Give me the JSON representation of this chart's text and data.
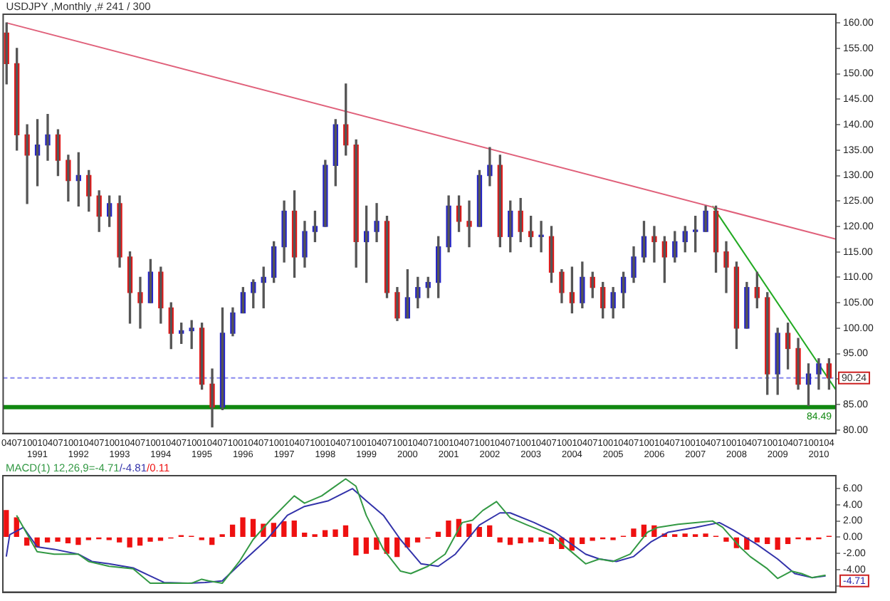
{
  "chart_data": [
    {
      "type": "candlestick",
      "title": "USDJPY ,Monthly ,# 241 / 300",
      "legend": false,
      "grid": false,
      "x": [
        "1990-04",
        "1990-07",
        "1990-10",
        "1991-01",
        "1991-04",
        "1991-07",
        "1991-10",
        "1992-01",
        "1992-04",
        "1992-07",
        "1992-10",
        "1993-01",
        "1993-04",
        "1993-07",
        "1993-10",
        "1994-01",
        "1994-04",
        "1994-07",
        "1994-10",
        "1995-01",
        "1995-04",
        "1995-07",
        "1995-10",
        "1996-01",
        "1996-04",
        "1996-07",
        "1996-10",
        "1997-01",
        "1997-04",
        "1997-07",
        "1997-10",
        "1998-01",
        "1998-04",
        "1998-07",
        "1998-10",
        "1999-01",
        "1999-04",
        "1999-07",
        "1999-10",
        "2000-01",
        "2000-04",
        "2000-07",
        "2000-10",
        "2001-01",
        "2001-04",
        "2001-07",
        "2001-10",
        "2002-01",
        "2002-04",
        "2002-07",
        "2002-10",
        "2003-01",
        "2003-04",
        "2003-07",
        "2003-10",
        "2004-01",
        "2004-04",
        "2004-07",
        "2004-10",
        "2005-01",
        "2005-04",
        "2005-07",
        "2005-10",
        "2006-01",
        "2006-04",
        "2006-07",
        "2006-10",
        "2007-01",
        "2007-04",
        "2007-07",
        "2007-10",
        "2008-01",
        "2008-04",
        "2008-07",
        "2008-10",
        "2009-01",
        "2009-04",
        "2009-07",
        "2009-10",
        "2010-01",
        "2010-04"
      ],
      "ohlc": [
        [
          158,
          160,
          148,
          152
        ],
        [
          152,
          155,
          135,
          138
        ],
        [
          138,
          140,
          124.5,
          134
        ],
        [
          134,
          141,
          128,
          136
        ],
        [
          136,
          142,
          133,
          138
        ],
        [
          138,
          139,
          130,
          133
        ],
        [
          133,
          134,
          125,
          129
        ],
        [
          129,
          134.5,
          124,
          130
        ],
        [
          130,
          131,
          123,
          126
        ],
        [
          126,
          127,
          119,
          122
        ],
        [
          122,
          126,
          120,
          124.5
        ],
        [
          124.5,
          126,
          112,
          114
        ],
        [
          114,
          115,
          101,
          107
        ],
        [
          107,
          110,
          100,
          105
        ],
        [
          105,
          113.5,
          105,
          111
        ],
        [
          111,
          112,
          101,
          104
        ],
        [
          104,
          105,
          96,
          99
        ],
        [
          99,
          101,
          97,
          99.5
        ],
        [
          99.5,
          101.5,
          96,
          100
        ],
        [
          100,
          101,
          88,
          89
        ],
        [
          89,
          92,
          80.6,
          84.5
        ],
        [
          84.5,
          104,
          84,
          99
        ],
        [
          99,
          104,
          98.5,
          103
        ],
        [
          103,
          108,
          103,
          107
        ],
        [
          107,
          109.5,
          104,
          109
        ],
        [
          109,
          112,
          104,
          110
        ],
        [
          110,
          117,
          109,
          116
        ],
        [
          116,
          125,
          113,
          123
        ],
        [
          123,
          127,
          110,
          114
        ],
        [
          114,
          121,
          112,
          119
        ],
        [
          119,
          123,
          117,
          120
        ],
        [
          120,
          133,
          120,
          132
        ],
        [
          132,
          141,
          128,
          140
        ],
        [
          140,
          148,
          134,
          136
        ],
        [
          136,
          137,
          112,
          117
        ],
        [
          117,
          124,
          109,
          119
        ],
        [
          119,
          124.5,
          117,
          121
        ],
        [
          121,
          122,
          106,
          107
        ],
        [
          107,
          108,
          101.5,
          102
        ],
        [
          102,
          111.5,
          102,
          106
        ],
        [
          106,
          110,
          104,
          108
        ],
        [
          108,
          110,
          106,
          109
        ],
        [
          109,
          118,
          106,
          116
        ],
        [
          116,
          126,
          115,
          124
        ],
        [
          124,
          126,
          119,
          121
        ],
        [
          121,
          125,
          116,
          120
        ],
        [
          120,
          131,
          120,
          130
        ],
        [
          130,
          135.5,
          128,
          132
        ],
        [
          132,
          134,
          116,
          118
        ],
        [
          118,
          125,
          115,
          123
        ],
        [
          123,
          125.5,
          117,
          119
        ],
        [
          119,
          122,
          116,
          118
        ],
        [
          118,
          121,
          115,
          118
        ],
        [
          118,
          120,
          109,
          111
        ],
        [
          111,
          111.5,
          105,
          107
        ],
        [
          107,
          112,
          103,
          105
        ],
        [
          105,
          113,
          104,
          110
        ],
        [
          110,
          111,
          106,
          108
        ],
        [
          108,
          109,
          102,
          104
        ],
        [
          104,
          108,
          102,
          107
        ],
        [
          107,
          111,
          104,
          110
        ],
        [
          110,
          116,
          109,
          114
        ],
        [
          114,
          121,
          113,
          118
        ],
        [
          118,
          120,
          113,
          117
        ],
        [
          117,
          118,
          109,
          114
        ],
        [
          114,
          119,
          113,
          117
        ],
        [
          117,
          120,
          115,
          119
        ],
        [
          119,
          122,
          115,
          119
        ],
        [
          119,
          124,
          119,
          123
        ],
        [
          123,
          124,
          111,
          115
        ],
        [
          115,
          117,
          107,
          112
        ],
        [
          112,
          113,
          96,
          100
        ],
        [
          100,
          109,
          100,
          108
        ],
        [
          108,
          111,
          104,
          106
        ],
        [
          106,
          107,
          87,
          91
        ],
        [
          91,
          100,
          87,
          99
        ],
        [
          99,
          101,
          92,
          96
        ],
        [
          96,
          98,
          88,
          89
        ],
        [
          89,
          93,
          84.8,
          91
        ],
        [
          91,
          94,
          88,
          93
        ],
        [
          93,
          94,
          88,
          90.24
        ]
      ],
      "series": [
        {
          "type": "line",
          "color": "#e0607a",
          "x": [
            "1990-04",
            "2010-06"
          ],
          "values": [
            160,
            117.5
          ]
        },
        {
          "type": "line",
          "color": "#22aa22",
          "x": [
            "2007-06",
            "2010-06"
          ],
          "values": [
            124,
            87.9
          ]
        }
      ],
      "ref_lines": [
        {
          "axis": "y",
          "value": 84.49,
          "label": "84.49",
          "color": "#118811"
        },
        {
          "axis": "y",
          "value": 90.24,
          "label": "90.24",
          "color": "#8888ee",
          "line_style": "dashed"
        }
      ],
      "xlim": [
        "1990-03",
        "2010-06"
      ],
      "ylim": [
        79.3,
        161.7
      ],
      "yticks": [
        {
          "value": 80,
          "label": "80.00"
        },
        {
          "value": 85,
          "label": "85.00"
        },
        {
          "value": 90,
          "label": null
        },
        {
          "value": 95,
          "label": "95.00"
        },
        {
          "value": 100,
          "label": "100.00"
        },
        {
          "value": 105,
          "label": "105.00"
        },
        {
          "value": 110,
          "label": "110.00"
        },
        {
          "value": 115,
          "label": "115.00"
        },
        {
          "value": 120,
          "label": "120.00"
        },
        {
          "value": 125,
          "label": "125.00"
        },
        {
          "value": 130,
          "label": "130.00"
        },
        {
          "value": 135,
          "label": "135.00"
        },
        {
          "value": 140,
          "label": "140.00"
        },
        {
          "value": 145,
          "label": "145.00"
        },
        {
          "value": 150,
          "label": "150.00"
        },
        {
          "value": 155,
          "label": "155.00"
        },
        {
          "value": 160,
          "label": "160.00"
        }
      ],
      "xticks": [
        {
          "value": "1990-04",
          "label": "04"
        },
        {
          "value": "1990-07",
          "label": "07"
        },
        {
          "value": "1990-10",
          "label": "10"
        },
        {
          "value": "1991-01",
          "label": "01\n1991"
        },
        {
          "value": "1991-04",
          "label": "04"
        },
        {
          "value": "1991-07",
          "label": "07"
        },
        {
          "value": "1991-10",
          "label": "10"
        },
        {
          "value": "1992-01",
          "label": "01\n1992"
        },
        {
          "value": "1992-04",
          "label": "04"
        },
        {
          "value": "1992-07",
          "label": "07"
        },
        {
          "value": "1992-10",
          "label": "10"
        },
        {
          "value": "1993-01",
          "label": "01\n1993"
        },
        {
          "value": "1993-04",
          "label": "04"
        },
        {
          "value": "1993-07",
          "label": "07"
        },
        {
          "value": "1993-10",
          "label": "10"
        },
        {
          "value": "1994-01",
          "label": "01\n1994"
        },
        {
          "value": "1994-04",
          "label": "04"
        },
        {
          "value": "1994-07",
          "label": "07"
        },
        {
          "value": "1994-10",
          "label": "10"
        },
        {
          "value": "1995-01",
          "label": "01\n1995"
        },
        {
          "value": "1995-04",
          "label": "04"
        },
        {
          "value": "1995-07",
          "label": "07"
        },
        {
          "value": "1995-10",
          "label": "10"
        },
        {
          "value": "1996-01",
          "label": "01\n1996"
        },
        {
          "value": "1996-04",
          "label": "04"
        },
        {
          "value": "1996-07",
          "label": "07"
        },
        {
          "value": "1996-10",
          "label": "10"
        },
        {
          "value": "1997-01",
          "label": "01\n1997"
        },
        {
          "value": "1997-04",
          "label": "04"
        },
        {
          "value": "1997-07",
          "label": "07"
        },
        {
          "value": "1997-10",
          "label": "10"
        },
        {
          "value": "1998-01",
          "label": "01\n1998"
        },
        {
          "value": "1998-04",
          "label": "04"
        },
        {
          "value": "1998-07",
          "label": "07"
        },
        {
          "value": "1998-10",
          "label": "10"
        },
        {
          "value": "1999-01",
          "label": "01\n1999"
        },
        {
          "value": "1999-04",
          "label": "04"
        },
        {
          "value": "1999-07",
          "label": "07"
        },
        {
          "value": "1999-10",
          "label": "10"
        },
        {
          "value": "2000-01",
          "label": "01\n2000"
        },
        {
          "value": "2000-04",
          "label": "04"
        },
        {
          "value": "2000-07",
          "label": "07"
        },
        {
          "value": "2000-10",
          "label": "10"
        },
        {
          "value": "2001-01",
          "label": "01\n2001"
        },
        {
          "value": "2001-04",
          "label": "04"
        },
        {
          "value": "2001-07",
          "label": "07"
        },
        {
          "value": "2001-10",
          "label": "10"
        },
        {
          "value": "2002-01",
          "label": "01\n2002"
        },
        {
          "value": "2002-04",
          "label": "04"
        },
        {
          "value": "2002-07",
          "label": "07"
        },
        {
          "value": "2002-10",
          "label": "10"
        },
        {
          "value": "2003-01",
          "label": "01\n2003"
        },
        {
          "value": "2003-04",
          "label": "04"
        },
        {
          "value": "2003-07",
          "label": "07"
        },
        {
          "value": "2003-10",
          "label": "10"
        },
        {
          "value": "2004-01",
          "label": "01\n2004"
        },
        {
          "value": "2004-04",
          "label": "04"
        },
        {
          "value": "2004-07",
          "label": "07"
        },
        {
          "value": "2004-10",
          "label": "10"
        },
        {
          "value": "2005-01",
          "label": "01\n2005"
        },
        {
          "value": "2005-04",
          "label": "04"
        },
        {
          "value": "2005-07",
          "label": "07"
        },
        {
          "value": "2005-10",
          "label": "10"
        },
        {
          "value": "2006-01",
          "label": "01\n2006"
        },
        {
          "value": "2006-04",
          "label": "04"
        },
        {
          "value": "2006-07",
          "label": "07"
        },
        {
          "value": "2006-10",
          "label": "10"
        },
        {
          "value": "2007-01",
          "label": "01\n2007"
        },
        {
          "value": "2007-04",
          "label": "04"
        },
        {
          "value": "2007-07",
          "label": "07"
        },
        {
          "value": "2007-10",
          "label": "10"
        },
        {
          "value": "2008-01",
          "label": "01\n2008"
        },
        {
          "value": "2008-04",
          "label": "04"
        },
        {
          "value": "2008-07",
          "label": "07"
        },
        {
          "value": "2008-10",
          "label": "10"
        },
        {
          "value": "2009-01",
          "label": "01\n2009"
        },
        {
          "value": "2009-04",
          "label": "04"
        },
        {
          "value": "2009-07",
          "label": "07"
        },
        {
          "value": "2009-10",
          "label": "10"
        },
        {
          "value": "2010-01",
          "label": "01\n2010"
        },
        {
          "value": "2010-04",
          "label": "04"
        }
      ]
    },
    {
      "type": "bar",
      "title": "MACD(1) 12,26,9",
      "legend": "top left",
      "grid": false,
      "tick_labels": "y",
      "x": [
        "1990-04",
        "1990-07",
        "1990-10",
        "1991-01",
        "1991-04",
        "1991-07",
        "1991-10",
        "1992-01",
        "1992-04",
        "1992-07",
        "1992-10",
        "1993-01",
        "1993-04",
        "1993-07",
        "1993-10",
        "1994-01",
        "1994-04",
        "1994-07",
        "1994-10",
        "1995-01",
        "1995-04",
        "1995-07",
        "1995-10",
        "1996-01",
        "1996-04",
        "1996-07",
        "1996-10",
        "1997-01",
        "1997-04",
        "1997-07",
        "1997-10",
        "1998-01",
        "1998-04",
        "1998-07",
        "1998-10",
        "1999-01",
        "1999-04",
        "1999-07",
        "1999-10",
        "2000-01",
        "2000-04",
        "2000-07",
        "2000-10",
        "2001-01",
        "2001-04",
        "2001-07",
        "2001-10",
        "2002-01",
        "2002-04",
        "2002-07",
        "2002-10",
        "2003-01",
        "2003-04",
        "2003-07",
        "2003-10",
        "2004-01",
        "2004-04",
        "2004-07",
        "2004-10",
        "2005-01",
        "2005-04",
        "2005-07",
        "2005-10",
        "2006-01",
        "2006-04",
        "2006-07",
        "2006-10",
        "2007-01",
        "2007-04",
        "2007-07",
        "2007-10",
        "2008-01",
        "2008-04",
        "2008-07",
        "2008-10",
        "2009-01",
        "2009-04",
        "2009-07",
        "2009-10",
        "2010-01",
        "2010-04"
      ],
      "series": [
        {
          "name": "=-4.71",
          "type": "line",
          "color": "#339944",
          "x": [
            "1990-07",
            "1991-01",
            "1991-06",
            "1992-01",
            "1992-04",
            "1992-10",
            "1993-05",
            "1993-10",
            "1994-01",
            "1994-06",
            "1994-10",
            "1995-01",
            "1995-03",
            "1995-07",
            "1995-12",
            "1996-04",
            "1996-09",
            "1997-04",
            "1997-07",
            "1997-12",
            "1998-03",
            "1998-07",
            "1998-10",
            "1999-01",
            "1999-06",
            "1999-11",
            "2000-02",
            "2000-07",
            "2000-12",
            "2001-05",
            "2001-08",
            "2001-11",
            "2002-03",
            "2002-07",
            "2002-12",
            "2003-07",
            "2003-12",
            "2004-05",
            "2004-09",
            "2005-01",
            "2005-06",
            "2005-11",
            "2006-02",
            "2006-08",
            "2007-01",
            "2007-06",
            "2007-09",
            "2008-02",
            "2008-05",
            "2008-10",
            "2009-01",
            "2009-05",
            "2009-08",
            "2009-11",
            "2010-03"
          ],
          "values": [
            2.7,
            -1.8,
            -2.1,
            -2.1,
            -3.0,
            -3.6,
            -3.9,
            -5.7,
            -5.7,
            -5.7,
            -5.7,
            -5.2,
            -5.4,
            -5.7,
            -3.0,
            -0.3,
            2.1,
            5.1,
            4.2,
            5.1,
            6.0,
            7.2,
            6.3,
            2.7,
            -1.5,
            -4.2,
            -4.5,
            -3.6,
            -2.1,
            1.8,
            2.1,
            3.3,
            4.4,
            2.4,
            1.5,
            0.3,
            -1.5,
            -3.3,
            -2.7,
            -3.0,
            -2.1,
            0.6,
            1.2,
            1.6,
            1.8,
            2.0,
            1.2,
            -1.2,
            -2.4,
            -3.9,
            -5.1,
            -4.2,
            -4.5,
            -5.0,
            -4.7
          ]
        },
        {
          "name": "/-4.81",
          "type": "line",
          "color": "#3333aa",
          "x": [
            "1990-04",
            "1990-05",
            "1990-09",
            "1991-01",
            "1991-06",
            "1992-01",
            "1992-05",
            "1992-10",
            "1993-05",
            "1993-10",
            "1994-02",
            "1994-09",
            "1995-02",
            "1995-07",
            "1996-01",
            "1996-08",
            "1997-02",
            "1997-07",
            "1998-02",
            "1998-09",
            "1999-01",
            "1999-06",
            "1999-11",
            "2000-05",
            "2000-10",
            "2001-03",
            "2001-10",
            "2002-04",
            "2002-07",
            "2003-02",
            "2003-08",
            "2004-05",
            "2004-09",
            "2005-02",
            "2005-07",
            "2005-12",
            "2006-05",
            "2007-01",
            "2007-08",
            "2007-12",
            "2008-07",
            "2009-01",
            "2009-06",
            "2009-11",
            "2010-03"
          ],
          "values": [
            -2.4,
            0.3,
            1.2,
            -1.2,
            -1.5,
            -2.1,
            -3.0,
            -3.3,
            -3.8,
            -4.8,
            -5.6,
            -5.7,
            -5.6,
            -5.4,
            -3.0,
            -0.3,
            2.7,
            3.8,
            4.5,
            6.0,
            4.5,
            2.7,
            -0.3,
            -3.3,
            -3.6,
            -2.1,
            1.5,
            3.0,
            3.0,
            1.8,
            0.6,
            -2.1,
            -2.7,
            -3.0,
            -2.4,
            -0.6,
            0.6,
            1.2,
            1.8,
            0.9,
            -0.9,
            -2.7,
            -4.5,
            -5.0,
            -4.8
          ]
        },
        {
          "name": "/0.11",
          "type": "bar",
          "color": "#ee1111",
          "values": [
            3.3,
            2.4,
            -1.0,
            -1.2,
            -0.6,
            -0.5,
            -0.7,
            -0.9,
            -0.3,
            -0.2,
            -0.3,
            -0.6,
            -1.2,
            -1.0,
            -0.5,
            -0.4,
            -0.1,
            0.2,
            0.1,
            -0.3,
            -0.9,
            0.3,
            1.5,
            2.4,
            2.2,
            1.6,
            1.7,
            1.9,
            2.0,
            0.5,
            0.3,
            0.8,
            0.9,
            1.4,
            -2.2,
            -2.0,
            -1.5,
            -2.0,
            -2.4,
            -1.2,
            -0.6,
            -0.1,
            0.6,
            2.0,
            2.2,
            1.6,
            1.2,
            1.4,
            -0.6,
            -0.9,
            -0.7,
            -0.6,
            -0.5,
            -0.8,
            -1.4,
            -1.6,
            -0.8,
            -0.4,
            -0.2,
            -0.3,
            0.1,
            1.0,
            1.5,
            1.4,
            0.4,
            0.3,
            0.4,
            0.3,
            0.4,
            0.1,
            -0.5,
            -1.3,
            -1.5,
            -0.6,
            -0.8,
            -1.5,
            -0.8,
            -0.2,
            -0.3,
            -0.2,
            0.1
          ]
        }
      ],
      "annotations": [
        "-4.71"
      ],
      "xlim": [
        "1990-03",
        "2010-06"
      ],
      "ylim": [
        -6.8,
        7.6
      ],
      "yticks": [
        {
          "value": -6,
          "label": null
        },
        {
          "value": -4,
          "label": "-4.00"
        },
        {
          "value": -2,
          "label": "-2.00"
        },
        {
          "value": 0,
          "label": "0.00"
        },
        {
          "value": 2,
          "label": "2.00"
        },
        {
          "value": 4,
          "label": "4.00"
        },
        {
          "value": 6,
          "label": "6.00"
        }
      ]
    }
  ]
}
